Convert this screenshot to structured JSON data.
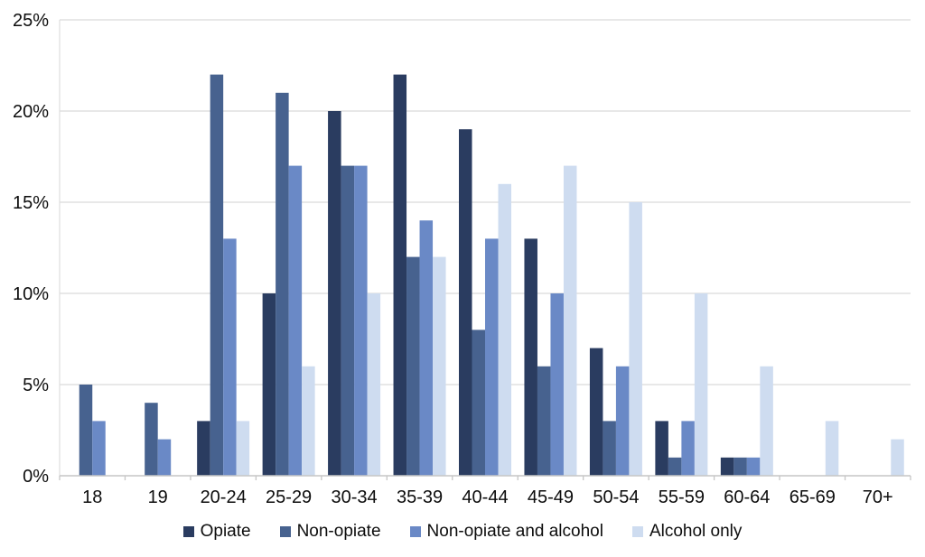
{
  "chart_data": {
    "type": "bar",
    "title": "",
    "xlabel": "",
    "ylabel": "",
    "categories": [
      "18",
      "19",
      "20-24",
      "25-29",
      "30-34",
      "35-39",
      "40-44",
      "45-49",
      "50-54",
      "55-59",
      "60-64",
      "65-69",
      "70+"
    ],
    "series": [
      {
        "name": "Opiate",
        "color": "#2A3C60",
        "values": [
          0,
          0,
          3,
          10,
          20,
          22,
          19,
          13,
          7,
          3,
          1,
          0,
          0
        ]
      },
      {
        "name": "Non-opiate",
        "color": "#47628F",
        "values": [
          5,
          4,
          22,
          21,
          17,
          12,
          8,
          6,
          3,
          1,
          1,
          0,
          0
        ]
      },
      {
        "name": "Non-opiate and alcohol",
        "color": "#6A89C6",
        "values": [
          3,
          2,
          13,
          17,
          17,
          14,
          13,
          10,
          6,
          3,
          1,
          0,
          0
        ]
      },
      {
        "name": "Alcohol only",
        "color": "#CEDCF0",
        "values": [
          0,
          0,
          3,
          6,
          10,
          12,
          16,
          17,
          15,
          10,
          6,
          3,
          2
        ]
      }
    ],
    "ylim": [
      0,
      25
    ],
    "y_tick_values": [
      0,
      5,
      10,
      15,
      20,
      25
    ],
    "y_tick_labels": [
      "0%",
      "5%",
      "10%",
      "15%",
      "20%",
      "25%"
    ],
    "grid": true,
    "legend_position": "bottom"
  },
  "style_colors": {
    "gridline": "#D9D9D9",
    "axis_line": "#C6C6C6",
    "left_border": "#E0E0E0",
    "text": "#0D0D0D",
    "background": "#FFFFFF"
  }
}
